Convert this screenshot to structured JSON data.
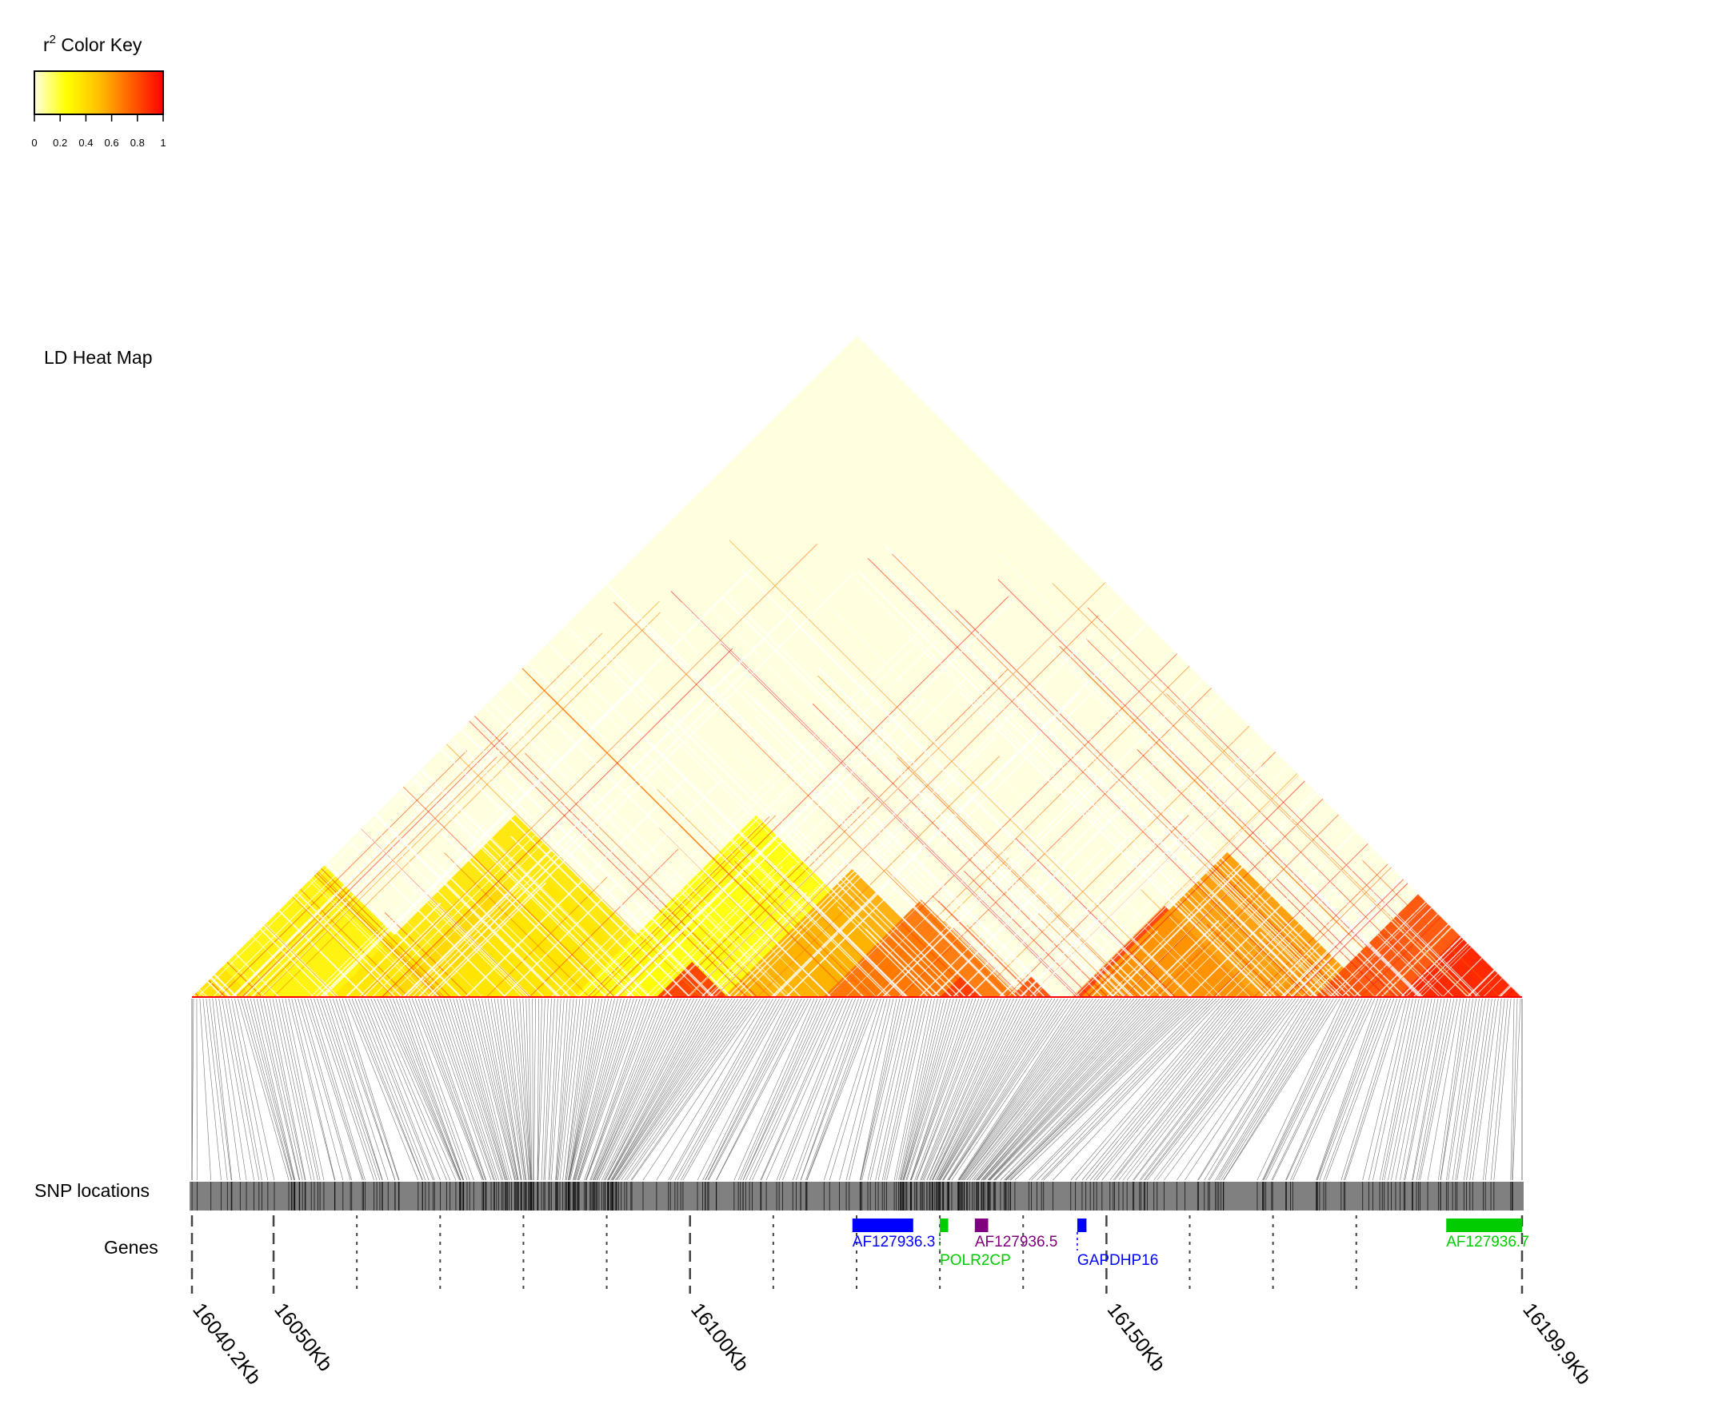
{
  "color_key": {
    "title_r": "r",
    "title_sup": "2",
    "title_rest": " Color Key",
    "ticks": [
      "0",
      "0.2",
      "0.4",
      "0.6",
      "0.8",
      "1"
    ],
    "gradient": [
      "#ffffe0",
      "#ffff00",
      "#ffc000",
      "#ff6000",
      "#ff0000"
    ]
  },
  "panels": {
    "heatmap_label": "LD Heat Map",
    "snp_label": "SNP locations",
    "genes_label": "Genes"
  },
  "chart_data": {
    "type": "heatmap",
    "title": "LD Heat Map",
    "value": "r2",
    "scale": [
      0,
      1
    ],
    "region_kb": [
      16040.2,
      16199.9
    ],
    "axis_ticks": [
      {
        "kb": 16040.2,
        "label": "16040.2Kb",
        "major": true
      },
      {
        "kb": 16050,
        "label": "16050Kb",
        "major": true
      },
      {
        "kb": 16060,
        "label": "",
        "major": false
      },
      {
        "kb": 16070,
        "label": "",
        "major": false
      },
      {
        "kb": 16080,
        "label": "",
        "major": false
      },
      {
        "kb": 16090,
        "label": "",
        "major": false
      },
      {
        "kb": 16100,
        "label": "16100Kb",
        "major": true
      },
      {
        "kb": 16110,
        "label": "",
        "major": false
      },
      {
        "kb": 16120,
        "label": "",
        "major": false
      },
      {
        "kb": 16130,
        "label": "",
        "major": false
      },
      {
        "kb": 16140,
        "label": "",
        "major": false
      },
      {
        "kb": 16150,
        "label": "16150Kb",
        "major": true
      },
      {
        "kb": 16160,
        "label": "",
        "major": false
      },
      {
        "kb": 16170,
        "label": "",
        "major": false
      },
      {
        "kb": 16180,
        "label": "",
        "major": false
      },
      {
        "kb": 16199.9,
        "label": "16199.9Kb",
        "major": true
      }
    ],
    "ld_blocks": [
      {
        "start_kb": 16040.2,
        "end_kb": 16047.5,
        "r2": 0.9
      },
      {
        "start_kb": 16040.2,
        "end_kb": 16072.0,
        "r2": 0.3
      },
      {
        "start_kb": 16063.0,
        "end_kb": 16091.0,
        "r2": 0.85
      },
      {
        "start_kb": 16057.0,
        "end_kb": 16101.0,
        "r2": 0.35
      },
      {
        "start_kb": 16069.0,
        "end_kb": 16097.0,
        "r2": 0.35
      },
      {
        "start_kb": 16086.0,
        "end_kb": 16130.0,
        "r2": 0.25
      },
      {
        "start_kb": 16096.0,
        "end_kb": 16104.5,
        "r2": 0.85
      },
      {
        "start_kb": 16104.0,
        "end_kb": 16135.0,
        "r2": 0.55
      },
      {
        "start_kb": 16116.0,
        "end_kb": 16139.5,
        "r2": 0.7
      },
      {
        "start_kb": 16130.0,
        "end_kb": 16135.0,
        "r2": 0.85
      },
      {
        "start_kb": 16138.5,
        "end_kb": 16143.5,
        "r2": 0.8
      },
      {
        "start_kb": 16146.0,
        "end_kb": 16168.0,
        "r2": 0.85
      },
      {
        "start_kb": 16170.0,
        "end_kb": 16179.5,
        "r2": 0.75
      },
      {
        "start_kb": 16170.0,
        "end_kb": 16179.5,
        "r2": 0.75
      },
      {
        "start_kb": 16147.0,
        "end_kb": 16182.0,
        "r2": 0.6
      },
      {
        "start_kb": 16175.0,
        "end_kb": 16199.9,
        "r2": 0.8
      },
      {
        "start_kb": 16185.0,
        "end_kb": 16199.9,
        "r2": 0.9
      }
    ],
    "genes": [
      {
        "name": "AF127936.3",
        "start_kb": 16119.5,
        "end_kb": 16126.8,
        "color": "#0000ff"
      },
      {
        "name": "POLR2CP",
        "start_kb": 16130.0,
        "end_kb": 16131.0,
        "color": "#00cc00"
      },
      {
        "name": "AF127936.5",
        "start_kb": 16134.2,
        "end_kb": 16135.8,
        "color": "#800080"
      },
      {
        "name": "GAPDHP16",
        "start_kb": 16146.5,
        "end_kb": 16147.6,
        "color": "#0000ff"
      },
      {
        "name": "AF127936.7",
        "start_kb": 16190.8,
        "end_kb": 16199.9,
        "color": "#00cc00"
      }
    ]
  }
}
